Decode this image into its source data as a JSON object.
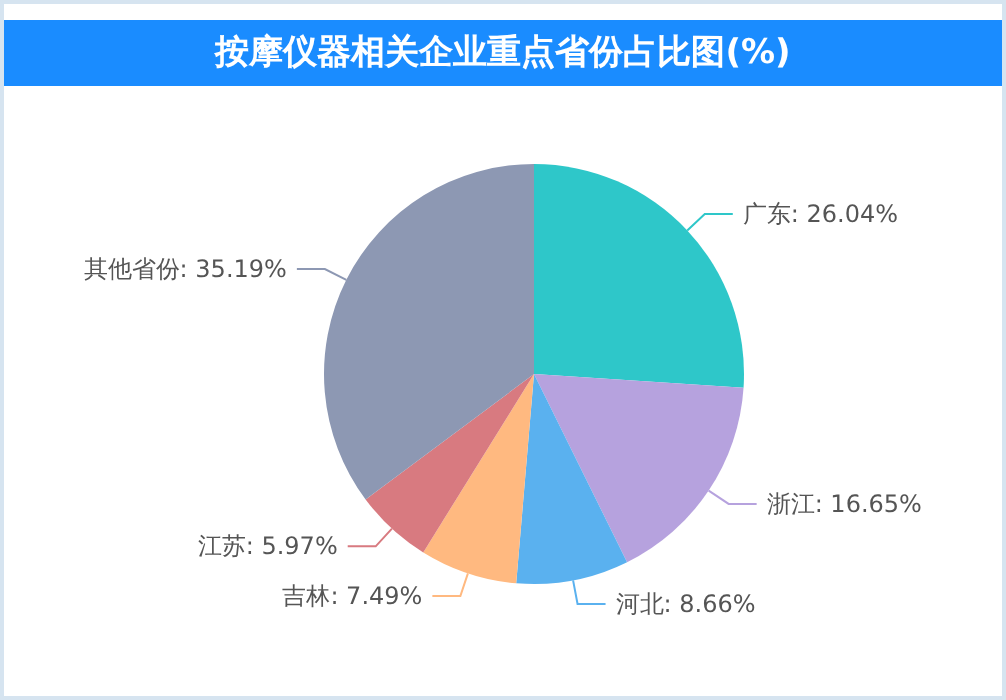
{
  "chart_data": {
    "type": "pie",
    "title": "按摩仪器相关企业重点省份占比图(%)",
    "categories": [
      "广东",
      "浙江",
      "河北",
      "吉林",
      "江苏",
      "其他省份"
    ],
    "values": [
      26.04,
      16.65,
      8.66,
      7.49,
      5.97,
      35.19
    ],
    "colors": [
      "#2ec7c9",
      "#b6a2de",
      "#5ab1ef",
      "#ffb980",
      "#d87a80",
      "#8d98b3"
    ],
    "value_labels": [
      "26.04%",
      "16.65%",
      "8.66%",
      "7.49%",
      "5.97%",
      "35.19%"
    ],
    "legend": false
  }
}
